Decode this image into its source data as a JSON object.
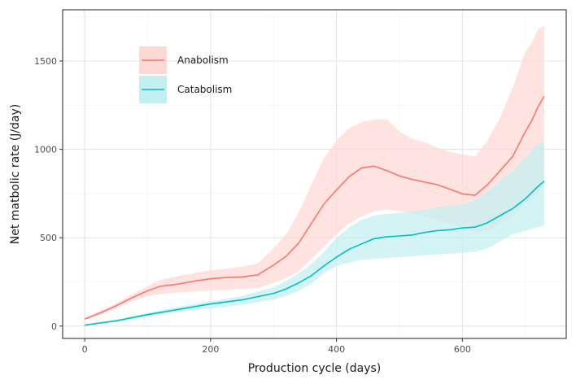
{
  "chart_data": {
    "type": "line",
    "xlabel": "Production cycle (days)",
    "ylabel": "Net matbolic rate (J/day)",
    "xlim": [
      -35,
      765
    ],
    "ylim": [
      -70,
      1790
    ],
    "x_ticks": [
      0,
      200,
      400,
      600
    ],
    "y_ticks": [
      0,
      500,
      1000,
      1500
    ],
    "x_minor": [
      100,
      300,
      500,
      700
    ],
    "y_minor": [
      250,
      750,
      1250,
      1750
    ],
    "grid": true,
    "legend_position": "top-left",
    "series": [
      {
        "name": "Anabolism",
        "color": "#F8766D",
        "ribbon_color": "#FDD9D6",
        "x": [
          0,
          25,
          50,
          75,
          100,
          120,
          150,
          175,
          200,
          225,
          250,
          275,
          300,
          320,
          340,
          360,
          380,
          400,
          420,
          440,
          460,
          480,
          500,
          520,
          540,
          560,
          580,
          600,
          620,
          640,
          660,
          680,
          700,
          710,
          720,
          730
        ],
        "y": [
          40,
          75,
          115,
          160,
          200,
          225,
          238,
          255,
          268,
          275,
          278,
          290,
          345,
          395,
          470,
          580,
          690,
          770,
          845,
          895,
          905,
          880,
          850,
          830,
          815,
          800,
          775,
          748,
          740,
          800,
          880,
          960,
          1100,
          1160,
          1240,
          1300
        ],
        "lower": [
          35,
          65,
          100,
          140,
          170,
          180,
          190,
          195,
          200,
          205,
          210,
          215,
          245,
          270,
          310,
          380,
          450,
          520,
          580,
          620,
          650,
          660,
          650,
          640,
          620,
          600,
          580,
          560,
          530,
          540,
          580,
          620,
          700,
          720,
          760,
          800
        ],
        "upper": [
          45,
          85,
          130,
          180,
          225,
          260,
          285,
          300,
          315,
          325,
          335,
          355,
          440,
          520,
          640,
          800,
          950,
          1050,
          1120,
          1155,
          1170,
          1170,
          1100,
          1060,
          1040,
          1010,
          985,
          970,
          960,
          1050,
          1180,
          1350,
          1550,
          1600,
          1680,
          1700
        ]
      },
      {
        "name": "Catabolism",
        "color": "#00BFC4",
        "ribbon_color": "#C4EFF0",
        "x": [
          0,
          50,
          100,
          150,
          200,
          250,
          300,
          320,
          340,
          360,
          380,
          400,
          420,
          440,
          460,
          480,
          500,
          520,
          540,
          560,
          580,
          600,
          620,
          640,
          660,
          680,
          700,
          710,
          720,
          730
        ],
        "y": [
          5,
          30,
          65,
          95,
          125,
          148,
          185,
          210,
          245,
          285,
          340,
          390,
          435,
          465,
          495,
          505,
          510,
          515,
          530,
          540,
          545,
          555,
          560,
          585,
          625,
          665,
          720,
          755,
          790,
          820
        ],
        "lower": [
          5,
          25,
          55,
          80,
          100,
          120,
          150,
          170,
          200,
          240,
          300,
          340,
          360,
          375,
          380,
          385,
          390,
          395,
          400,
          405,
          410,
          415,
          420,
          440,
          480,
          520,
          540,
          550,
          560,
          570
        ],
        "upper": [
          10,
          35,
          75,
          110,
          140,
          170,
          220,
          255,
          300,
          350,
          420,
          500,
          560,
          600,
          625,
          635,
          640,
          650,
          660,
          670,
          680,
          690,
          710,
          760,
          820,
          880,
          950,
          990,
          1030,
          1040
        ]
      }
    ]
  },
  "colors": {
    "panel_border": "#333333",
    "grid_major": "#e5e5e5",
    "grid_minor": "#f2f2f2",
    "tick": "#333333"
  }
}
